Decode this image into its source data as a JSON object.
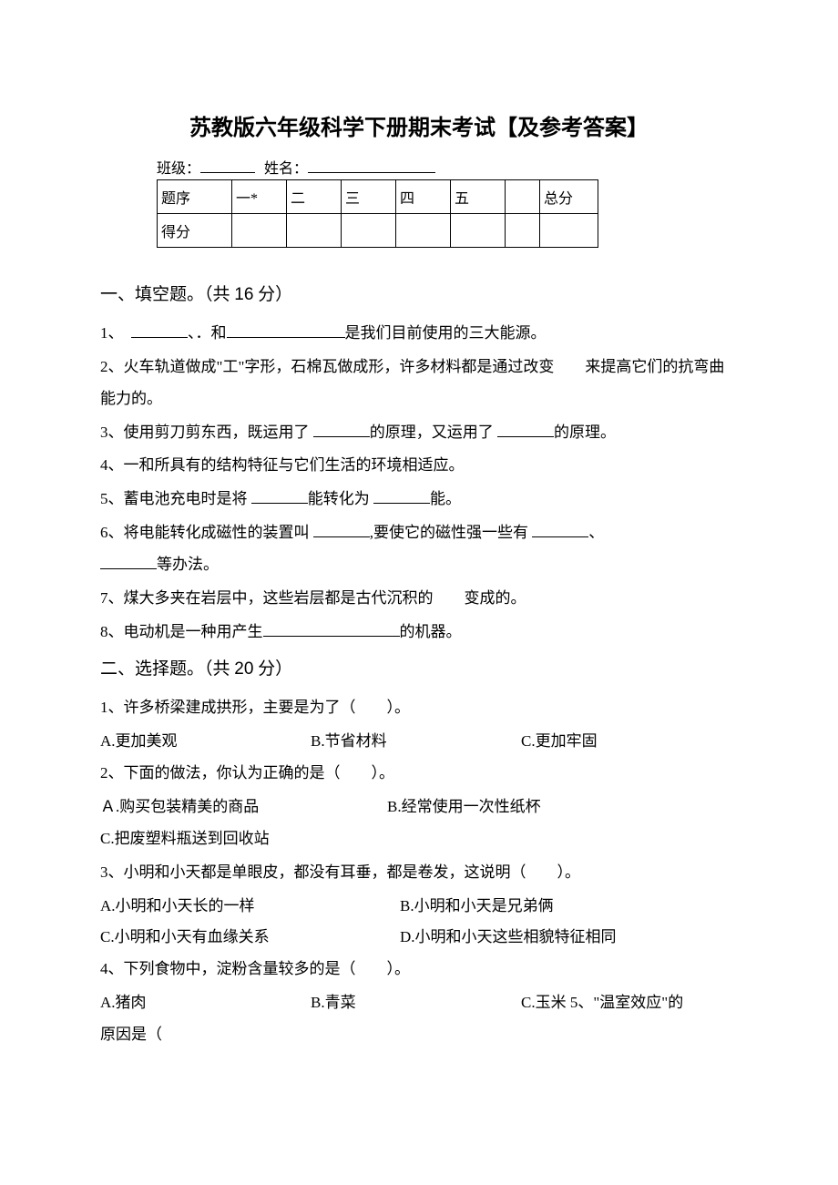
{
  "title": "苏教版六年级科学下册期末考试【及参考答案】",
  "info": {
    "class_label": "班级：",
    "name_label": "姓名："
  },
  "score_table": {
    "row1_label": "题序",
    "c1": "一*",
    "c2": "二",
    "c3": "三",
    "c4": "四",
    "c5": "五",
    "total": "总分",
    "row2_label": "得分"
  },
  "section1": {
    "header_pre": "一、填空题。（共 ",
    "points": "16",
    "header_post": " 分）",
    "q1_a": "1、　",
    "q1_b": "、．和",
    "q1_c": "是我们目前使用的三大能源。",
    "q2": "2、火车轨道做成\"工\"字形，石棉瓦做成形，许多材料都是通过改变　　来提高它们的抗弯曲能力的。",
    "q3_a": "3、使用剪刀剪东西，既运用了 ",
    "q3_b": "的原理，又运用了 ",
    "q3_c": "的原理。",
    "q4": "4、一和所具有的结构特征与它们生活的环境相适应。",
    "q5_a": "5、蓄电池充电时是将 ",
    "q5_b": "能转化为 ",
    "q5_c": "能。",
    "q6_a": "6、将电能转化成磁性的装置叫 ",
    "q6_b": ",要使它的磁性强一些有 ",
    "q6_c": "、",
    "q6_d": "等办法。",
    "q7": "7、煤大多夹在岩层中，这些岩层都是古代沉积的　　变成的。",
    "q8_a": "8、电动机是一种用产生",
    "q8_b": "的机器。"
  },
  "section2": {
    "header_pre": "二、选择题。（共 ",
    "points": "20",
    "header_post": " 分）",
    "q1": "1、许多桥梁建成拱形，主要是为了（　　）。",
    "q1a": "A.更加美观",
    "q1b": "B.节省材料",
    "q1c": "C.更加牢固",
    "q2": "2、下面的做法，你认为正确的是（　　）。",
    "q2a": "Ａ.购买包装精美的商品",
    "q2b": "B.经常使用一次性纸杯",
    "q2c": "C.把废塑料瓶送到回收站",
    "q3": "3、小明和小天都是单眼皮，都没有耳垂，都是卷发，这说明（　　）。",
    "q3a": "A.小明和小天长的一样",
    "q3b": "B.小明和小天是兄弟俩",
    "q3c": "C.小明和小天有血缘关系",
    "q3d": "D.小明和小天这些相貌特征相同",
    "q4": "4、下列食物中，淀粉含量较多的是（　　）。",
    "q4a": "A.猪肉",
    "q4b": "B.青菜",
    "q4c": "C.玉米 5、\"温室效应\"的",
    "q5tail": "原因是（"
  }
}
